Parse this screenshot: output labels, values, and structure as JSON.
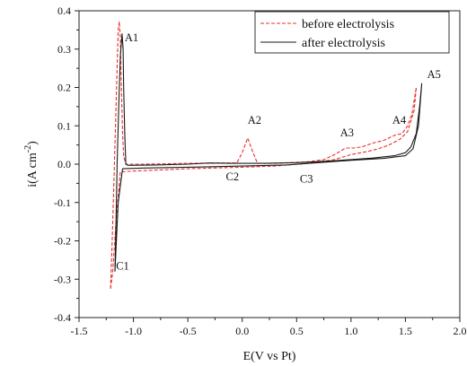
{
  "chart_data": {
    "type": "line",
    "xlabel": "E(V vs Pt)",
    "ylabel_main": "i(A cm",
    "ylabel_sup": "-2",
    "ylabel_tail": ")",
    "xlim": [
      -1.5,
      2.0
    ],
    "ylim": [
      -0.4,
      0.4
    ],
    "xticks": [
      -1.5,
      -1.0,
      -0.5,
      0.0,
      0.5,
      1.0,
      1.5,
      2.0
    ],
    "xtick_labels": [
      "-1.5",
      "-1.0",
      "-0.5",
      "0.0",
      "0.5",
      "1.0",
      "1.5",
      "2.0"
    ],
    "yticks": [
      -0.4,
      -0.3,
      -0.2,
      -0.1,
      0.0,
      0.1,
      0.2,
      0.3,
      0.4
    ],
    "ytick_labels": [
      "-0.4",
      "-0.3",
      "-0.2",
      "-0.1",
      "0.0",
      "0.1",
      "0.2",
      "0.3",
      "0.4"
    ],
    "grid": false,
    "legend_position": "top-right",
    "series": [
      {
        "name": "before electrolysis",
        "color": "#e8302a",
        "dash": "dashed",
        "points": [
          [
            -1.21,
            -0.325
          ],
          [
            -1.195,
            -0.2
          ],
          [
            -1.18,
            -0.05
          ],
          [
            -1.165,
            0.1
          ],
          [
            -1.15,
            0.25
          ],
          [
            -1.14,
            0.35
          ],
          [
            -1.13,
            0.372
          ],
          [
            -1.12,
            0.33
          ],
          [
            -1.11,
            0.2
          ],
          [
            -1.1,
            0.08
          ],
          [
            -1.09,
            0.02
          ],
          [
            -1.07,
            0.0
          ],
          [
            -0.9,
            0.0
          ],
          [
            -0.5,
            0.002
          ],
          [
            -0.2,
            0.003
          ],
          [
            -0.05,
            0.003
          ],
          [
            0.0,
            0.03
          ],
          [
            0.05,
            0.068
          ],
          [
            0.1,
            0.03
          ],
          [
            0.14,
            0.002
          ],
          [
            0.3,
            0.002
          ],
          [
            0.6,
            0.006
          ],
          [
            0.75,
            0.012
          ],
          [
            0.85,
            0.025
          ],
          [
            0.95,
            0.042
          ],
          [
            1.02,
            0.042
          ],
          [
            1.1,
            0.045
          ],
          [
            1.2,
            0.055
          ],
          [
            1.3,
            0.062
          ],
          [
            1.4,
            0.075
          ],
          [
            1.47,
            0.08
          ],
          [
            1.52,
            0.1
          ],
          [
            1.56,
            0.13
          ],
          [
            1.6,
            0.2
          ],
          [
            1.58,
            0.14
          ],
          [
            1.52,
            0.085
          ],
          [
            1.45,
            0.065
          ],
          [
            1.35,
            0.05
          ],
          [
            1.25,
            0.04
          ],
          [
            1.15,
            0.033
          ],
          [
            1.0,
            0.025
          ],
          [
            0.85,
            0.012
          ],
          [
            0.6,
            0.002
          ],
          [
            0.3,
            -0.005
          ],
          [
            0.0,
            -0.008
          ],
          [
            -0.5,
            -0.012
          ],
          [
            -1.0,
            -0.018
          ],
          [
            -1.12,
            -0.02
          ],
          [
            -1.16,
            -0.15
          ],
          [
            -1.19,
            -0.28
          ],
          [
            -1.21,
            -0.325
          ]
        ]
      },
      {
        "name": "after electrolysis",
        "color": "#1a1a1a",
        "dash": "solid",
        "points": [
          [
            -1.17,
            -0.28
          ],
          [
            -1.16,
            -0.15
          ],
          [
            -1.15,
            0.0
          ],
          [
            -1.135,
            0.15
          ],
          [
            -1.12,
            0.28
          ],
          [
            -1.105,
            0.34
          ],
          [
            -1.095,
            0.3
          ],
          [
            -1.09,
            0.2
          ],
          [
            -1.08,
            0.08
          ],
          [
            -1.07,
            0.0
          ],
          [
            -1.05,
            -0.003
          ],
          [
            -0.8,
            -0.002
          ],
          [
            -0.5,
            0.0
          ],
          [
            -0.3,
            0.003
          ],
          [
            -0.1,
            0.002
          ],
          [
            0.2,
            0.002
          ],
          [
            0.5,
            0.004
          ],
          [
            0.8,
            0.008
          ],
          [
            1.0,
            0.012
          ],
          [
            1.2,
            0.016
          ],
          [
            1.4,
            0.022
          ],
          [
            1.5,
            0.03
          ],
          [
            1.55,
            0.045
          ],
          [
            1.6,
            0.08
          ],
          [
            1.63,
            0.15
          ],
          [
            1.65,
            0.21
          ],
          [
            1.62,
            0.1
          ],
          [
            1.57,
            0.04
          ],
          [
            1.5,
            0.022
          ],
          [
            1.3,
            0.015
          ],
          [
            1.0,
            0.01
          ],
          [
            0.7,
            0.004
          ],
          [
            0.4,
            -0.002
          ],
          [
            0.0,
            -0.005
          ],
          [
            -0.5,
            -0.008
          ],
          [
            -0.9,
            -0.01
          ],
          [
            -1.1,
            -0.012
          ],
          [
            -1.14,
            -0.1
          ],
          [
            -1.16,
            -0.22
          ],
          [
            -1.17,
            -0.28
          ]
        ]
      }
    ],
    "annotations": [
      {
        "text": "A1",
        "x": -1.08,
        "y": 0.32
      },
      {
        "text": "A2",
        "x": 0.05,
        "y": 0.105
      },
      {
        "text": "A3",
        "x": 0.9,
        "y": 0.072
      },
      {
        "text": "A4",
        "x": 1.38,
        "y": 0.105
      },
      {
        "text": "A5",
        "x": 1.7,
        "y": 0.225
      },
      {
        "text": "C1",
        "x": -1.16,
        "y": -0.275
      },
      {
        "text": "C2",
        "x": -0.15,
        "y": -0.042
      },
      {
        "text": "C3",
        "x": 0.53,
        "y": -0.048
      }
    ]
  }
}
